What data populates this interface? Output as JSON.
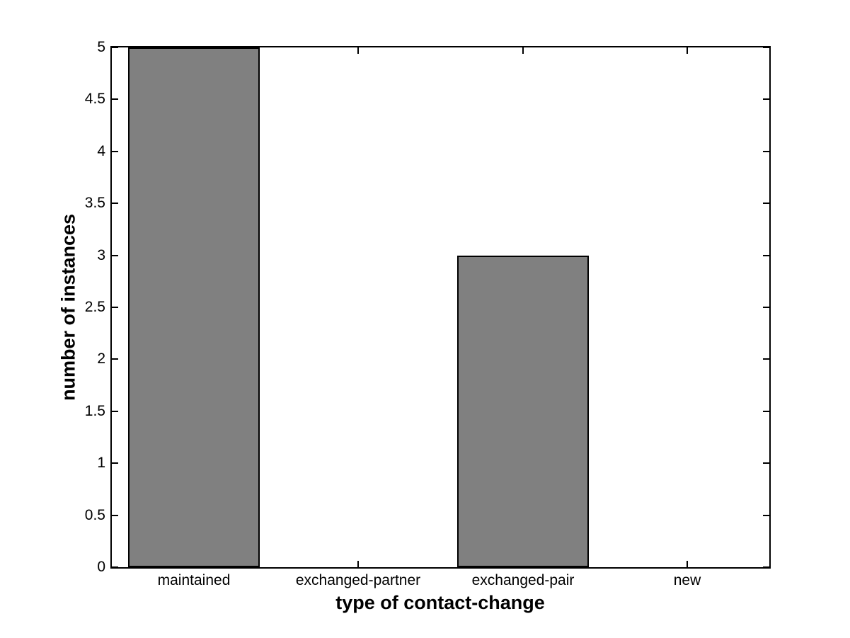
{
  "figure": {
    "background": "#ffffff"
  },
  "chart_data": {
    "type": "bar",
    "categories": [
      "maintained",
      "exchanged-partner",
      "exchanged-pair",
      "new"
    ],
    "values": [
      5,
      0,
      3,
      0
    ],
    "xlabel": "type of contact-change",
    "ylabel": "number of instances",
    "ylim": [
      0,
      5
    ],
    "yticks": [
      0,
      0.5,
      1,
      1.5,
      2,
      2.5,
      3,
      3.5,
      4,
      4.5,
      5
    ],
    "ytick_labels": [
      "0",
      "0.5",
      "1",
      "1.5",
      "2",
      "2.5",
      "3",
      "3.5",
      "4",
      "4.5",
      "5"
    ],
    "bar_color": "#808080",
    "bar_edge_color": "#000000",
    "axis_color": "#000000",
    "bar_width_fraction": 0.8,
    "grid": false,
    "box": true,
    "tick_direction": "in"
  }
}
